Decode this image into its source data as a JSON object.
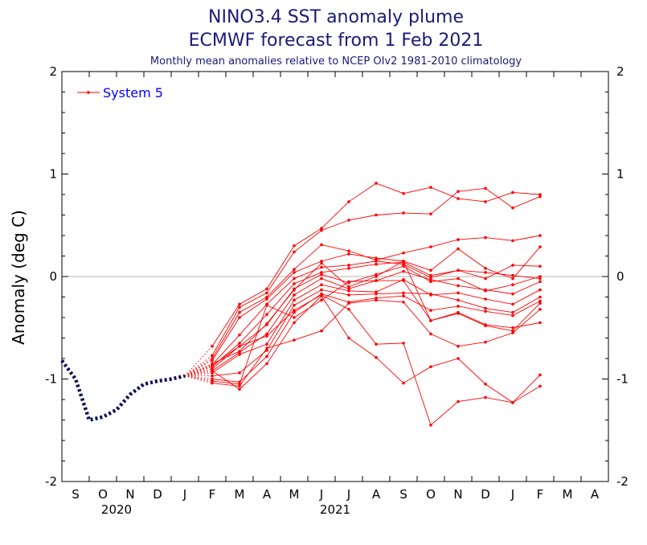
{
  "chart_data": {
    "type": "line",
    "title_line1": "NINO3.4 SST anomaly plume",
    "title_line2": "ECMWF forecast from 1 Feb 2021",
    "subtitle": "Monthly mean anomalies relative to NCEP OIv2 1981-2010 climatology",
    "ylabel": "Anomaly (deg C)",
    "ylim": [
      -2,
      2
    ],
    "yticks": [
      "2",
      "1",
      "0",
      "-1",
      "-2"
    ],
    "yticks_values": [
      2,
      1,
      0,
      -1,
      -2
    ],
    "xticks": [
      "S",
      "O",
      "N",
      "D",
      "J",
      "F",
      "M",
      "A",
      "M",
      "J",
      "J",
      "A",
      "S",
      "O",
      "N",
      "D",
      "J",
      "F",
      "M",
      "A"
    ],
    "year_labels": [
      {
        "label": "2020",
        "month_index": 1.5
      },
      {
        "label": "2021",
        "month_index": 9.5
      }
    ],
    "legend": {
      "entries": [
        "System 5"
      ],
      "placement": "top-left"
    },
    "grid": false,
    "colors": {
      "observed": "#0a0a5a",
      "forecast": "#ff0000",
      "zero_line": "#b4b4b4"
    },
    "observed": {
      "x": [
        -0.5,
        0,
        0.5,
        1,
        1.5,
        2,
        2.5,
        3,
        3.5,
        4
      ],
      "y": [
        -0.82,
        -1.0,
        -1.4,
        -1.37,
        -1.3,
        -1.15,
        -1.05,
        -1.02,
        -1.0,
        -0.97
      ]
    },
    "forecast_start": {
      "x": 4,
      "y": -0.97
    },
    "forecast_x": [
      5,
      6,
      7,
      8,
      9,
      10,
      11,
      12,
      13,
      14,
      15,
      16,
      17
    ],
    "members": [
      [
        -0.68,
        -0.27,
        -0.12,
        0.3,
        0.47,
        0.73,
        0.91,
        0.81,
        0.87,
        0.76,
        0.73,
        0.82,
        0.8
      ],
      [
        -0.77,
        -0.3,
        -0.16,
        0.24,
        0.45,
        0.55,
        0.6,
        0.62,
        0.61,
        0.83,
        0.86,
        0.67,
        0.78
      ],
      [
        -0.8,
        -0.35,
        -0.2,
        0.07,
        0.31,
        0.25,
        0.16,
        0.23,
        0.29,
        0.36,
        0.38,
        0.35,
        0.4
      ],
      [
        -0.82,
        -0.4,
        -0.22,
        0.04,
        0.15,
        0.22,
        0.18,
        0.15,
        0.06,
        0.27,
        0.08,
        -0.02,
        0.29
      ],
      [
        -0.86,
        -0.57,
        -0.27,
        -0.02,
        0.09,
        0.11,
        0.15,
        0.12,
        -0.01,
        0.06,
        -0.02,
        0.11,
        0.1
      ],
      [
        -0.88,
        -0.65,
        -0.37,
        -0.07,
        0.04,
        0.08,
        0.12,
        0.14,
        0.01,
        0.06,
        0.04,
        0.01,
        -0.02
      ],
      [
        -0.9,
        -0.68,
        -0.47,
        -0.12,
        0.02,
        -0.06,
        0.02,
        0.1,
        -0.05,
        -0.02,
        -0.14,
        -0.08,
        0.0
      ],
      [
        -0.92,
        -0.74,
        -0.56,
        -0.18,
        -0.02,
        -0.12,
        -0.04,
        0.05,
        -0.03,
        -0.09,
        -0.13,
        -0.17,
        -0.05
      ],
      [
        -0.94,
        -0.76,
        -0.66,
        -0.23,
        -0.08,
        -0.14,
        -0.15,
        -0.03,
        -0.18,
        -0.16,
        -0.22,
        -0.27,
        -0.13
      ],
      [
        -0.97,
        -0.94,
        -0.72,
        -0.28,
        -0.13,
        -0.18,
        -0.17,
        -0.16,
        -0.17,
        -0.23,
        -0.31,
        -0.35,
        -0.2
      ],
      [
        -1.0,
        -1.03,
        -0.78,
        -0.35,
        -0.17,
        -0.25,
        -0.21,
        -0.19,
        -0.33,
        -0.29,
        -0.34,
        -0.38,
        -0.24
      ],
      [
        -1.02,
        -1.05,
        -0.28,
        -0.4,
        -0.23,
        -0.05,
        -0.04,
        -0.04,
        -0.43,
        -0.36,
        -0.48,
        -0.53,
        -0.26
      ],
      [
        -1.04,
        -1.07,
        -0.7,
        -0.62,
        -0.53,
        -0.26,
        -0.23,
        -0.25,
        -0.56,
        -0.68,
        -0.64,
        -0.55,
        -0.32
      ],
      [
        -0.92,
        -1.1,
        -0.85,
        -0.45,
        -0.19,
        -0.6,
        -0.79,
        -1.04,
        -0.88,
        -0.8,
        -1.05,
        -1.23,
        -0.96
      ],
      [
        -0.85,
        -0.73,
        -0.46,
        -0.13,
        0.13,
        -0.1,
        0.0,
        0.15,
        -0.43,
        -0.35,
        -0.47,
        -0.5,
        -0.45
      ],
      [
        -0.87,
        -0.68,
        -0.58,
        -0.33,
        -0.18,
        -0.32,
        -0.66,
        -0.65,
        -1.45,
        -1.22,
        -1.18,
        -1.23,
        -1.07
      ]
    ]
  }
}
